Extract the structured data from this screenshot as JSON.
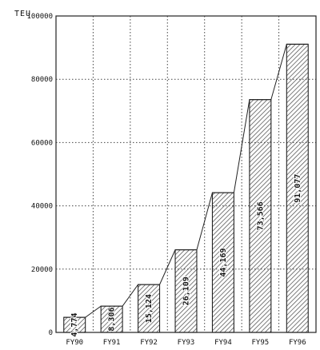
{
  "chart_data": {
    "type": "bar",
    "title": "",
    "ylabel": "TEU",
    "xlabel": "",
    "categories": [
      "FY90",
      "FY91",
      "FY92",
      "FY93",
      "FY94",
      "FY95",
      "FY96"
    ],
    "values": [
      4774,
      8306,
      15124,
      26109,
      44169,
      73566,
      91077
    ],
    "value_labels": [
      "4,774",
      "8,306",
      "15,124",
      "26,109",
      "44,169",
      "73,566",
      "91,077"
    ],
    "ylim": [
      0,
      100000
    ],
    "yticks": [
      0,
      20000,
      40000,
      60000,
      80000,
      100000
    ],
    "ytick_labels": [
      "0",
      "20000",
      "40000",
      "60000",
      "80000",
      "100000"
    ],
    "grid": true,
    "grid_style": "dotted",
    "trend_line": true,
    "bar_fill": "hatched",
    "colors": {
      "bar_edge": "#222222",
      "hatch": "#444444",
      "grid": "#444444",
      "text": "#111111"
    }
  }
}
